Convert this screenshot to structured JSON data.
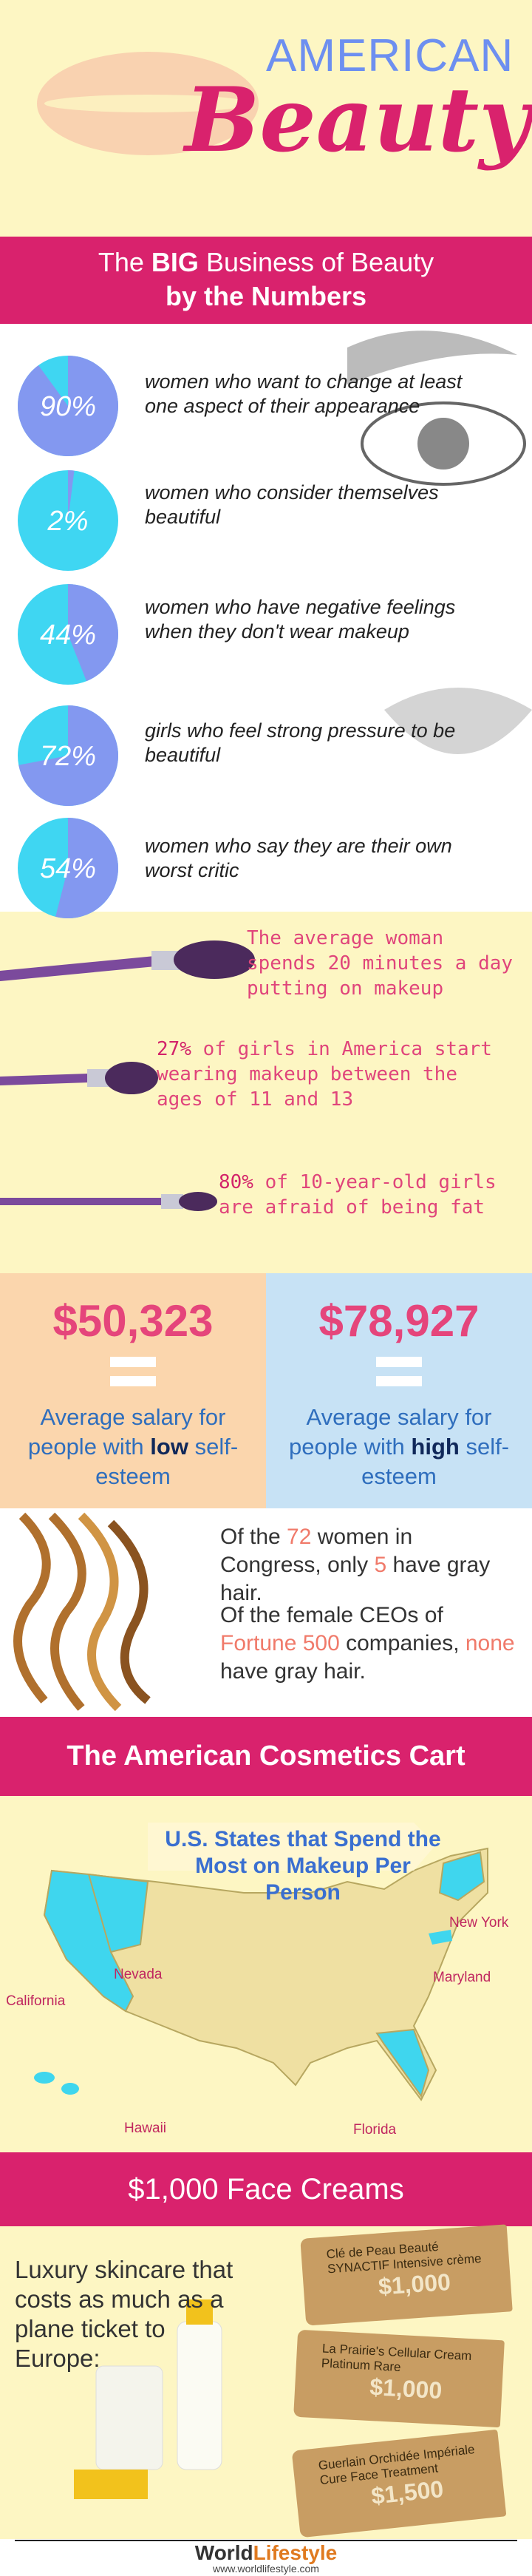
{
  "header": {
    "line1": "AMERICAN",
    "line2": "Beauty"
  },
  "numbers_banner": {
    "pre": "The ",
    "bold": "BIG",
    "post": " Business of Beauty",
    "subtitle": "by the Numbers"
  },
  "stats": [
    {
      "percent": {
        "value": 90,
        "label": "90%"
      },
      "text": "women who want to change at least one aspect of their appearance"
    },
    {
      "percent": {
        "value": 2,
        "label": "2%"
      },
      "text": "women who consider themselves beautiful"
    },
    {
      "percent": {
        "value": 44,
        "label": "44%"
      },
      "text": "women who have negative feelings when they don't wear makeup"
    },
    {
      "percent": {
        "value": 72,
        "label": "72%"
      },
      "text": "girls who feel strong pressure to be beautiful"
    },
    {
      "percent": {
        "value": 54,
        "label": "54%"
      },
      "text": "women who say they are their own worst critic"
    }
  ],
  "makeup_facts": [
    {
      "highlight": "",
      "text": "The average woman spends 20 minutes a day putting on makeup"
    },
    {
      "highlight": "27%",
      "text": " of girls in America start wearing makeup between the ages of 11 and 13"
    },
    {
      "highlight": "80%",
      "text": " of 10-year-old girls are afraid of being fat"
    }
  ],
  "salaries": [
    {
      "amount": "$50,323",
      "pre": "Average salary for people with ",
      "level": "low",
      "post": " self-esteem"
    },
    {
      "amount": "$78,927",
      "pre": "Average salary for people with ",
      "level": "high",
      "post": " self-esteem"
    }
  ],
  "gray_hair": [
    [
      "Of the ",
      "72",
      " women in Congress, only ",
      "5",
      " have gray hair."
    ],
    [
      "Of the female CEOs of ",
      "Fortune 500",
      " companies, ",
      "none",
      " have gray hair."
    ]
  ],
  "cart_banner": "The American Cosmetics Cart",
  "map": {
    "title": "U.S. States that Spend the Most on Makeup Per Person",
    "labels": [
      "New York",
      "Maryland",
      "Nevada",
      "California",
      "Hawaii",
      "Florida"
    ]
  },
  "creams_banner": "$1,000 Face Creams",
  "creams": {
    "intro": "Luxury skincare that costs as much as a plane ticket to Europe:",
    "products": [
      {
        "name": "Clé de Peau Beauté SYNACTIF Intensive crème",
        "price": "$1,000"
      },
      {
        "name": "La Prairie's Cellular Cream Platinum Rare",
        "price": "$1,000"
      },
      {
        "name": "Guerlain Orchidée Impériale Cure Face Treatment",
        "price": "$1,500"
      }
    ]
  },
  "footer": {
    "brand1": "World",
    "brand2": "Lifestyle",
    "url": "www.worldlifestyle.com"
  }
}
